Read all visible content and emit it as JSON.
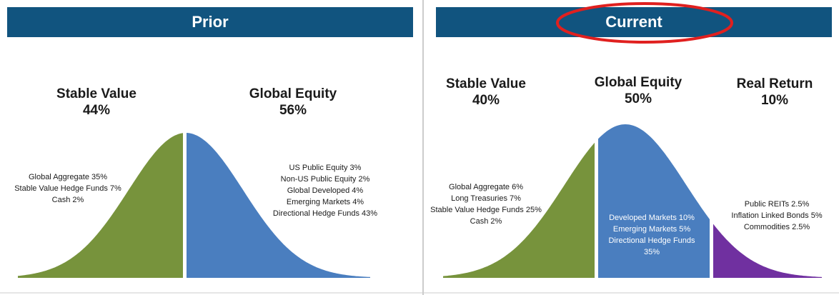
{
  "panels": [
    {
      "title": "Prior",
      "groups": [
        {
          "name": "Stable Value",
          "share": "44%",
          "items": [
            "Global Aggregate 35%",
            "Stable Value Hedge Funds 7%",
            "Cash 2%"
          ]
        },
        {
          "name": "Global Equity",
          "share": "56%",
          "items": [
            "US Public Equity 3%",
            "Non-US Public Equity 2%",
            "Global Developed 4%",
            "Emerging Markets 4%",
            "Directional Hedge Funds 43%"
          ]
        }
      ]
    },
    {
      "title": "Current",
      "groups": [
        {
          "name": "Stable Value",
          "share": "40%",
          "items": [
            "Global Aggregate 6%",
            "Long Treasuries 7%",
            "Stable Value Hedge Funds 25%",
            "Cash 2%"
          ]
        },
        {
          "name": "Global Equity",
          "share": "50%",
          "items": [
            "Developed Markets 10%",
            "Emerging Markets 5%",
            "Directional Hedge Funds 35%"
          ]
        },
        {
          "name": "Real Return",
          "share": "10%",
          "items": [
            "Public REITs 2.5%",
            "Inflation Linked Bonds 5%",
            "Commodities 2.5%"
          ]
        }
      ]
    }
  ]
}
